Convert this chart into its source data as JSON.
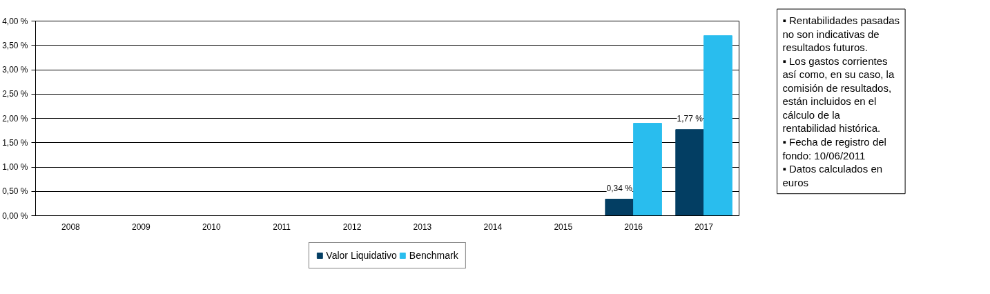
{
  "chart_data": {
    "type": "bar",
    "categories": [
      "2008",
      "2009",
      "2010",
      "2011",
      "2012",
      "2013",
      "2014",
      "2015",
      "2016",
      "2017"
    ],
    "series": [
      {
        "name": "Valor Liquidativo",
        "color": "#033e63",
        "values": [
          null,
          null,
          null,
          null,
          null,
          null,
          null,
          null,
          0.34,
          1.77
        ],
        "value_labels": [
          null,
          null,
          null,
          null,
          null,
          null,
          null,
          null,
          "0,34 %",
          "1,77 %"
        ]
      },
      {
        "name": "Benchmark",
        "color": "#29bdee",
        "values": [
          null,
          null,
          null,
          null,
          null,
          null,
          null,
          null,
          1.9,
          3.7
        ]
      }
    ],
    "ylim": [
      0,
      4
    ],
    "yticks": [
      {
        "value": 0,
        "label": "0,00 %"
      },
      {
        "value": 0.5,
        "label": "0,50 %"
      },
      {
        "value": 1,
        "label": "1,00 %"
      },
      {
        "value": 1.5,
        "label": "1,50 %"
      },
      {
        "value": 2,
        "label": "2,00 %"
      },
      {
        "value": 2.5,
        "label": "2,50 %"
      },
      {
        "value": 3,
        "label": "3,00 %"
      },
      {
        "value": 3.5,
        "label": "3,50 %"
      },
      {
        "value": 4,
        "label": "4,00 %"
      }
    ],
    "grid": "y",
    "legend": "bottom",
    "annotations": [
      "▪ Rentabilidades pasadas no son indicativas de resultados futuros.",
      "▪ Los gastos corrientes así como, en su caso, la comisión de resultados, están incluidos en el cálculo de la rentabilidad histórica.",
      "▪ Fecha de registro del fondo: 10/06/2011",
      "▪ Datos calculados en euros"
    ]
  }
}
